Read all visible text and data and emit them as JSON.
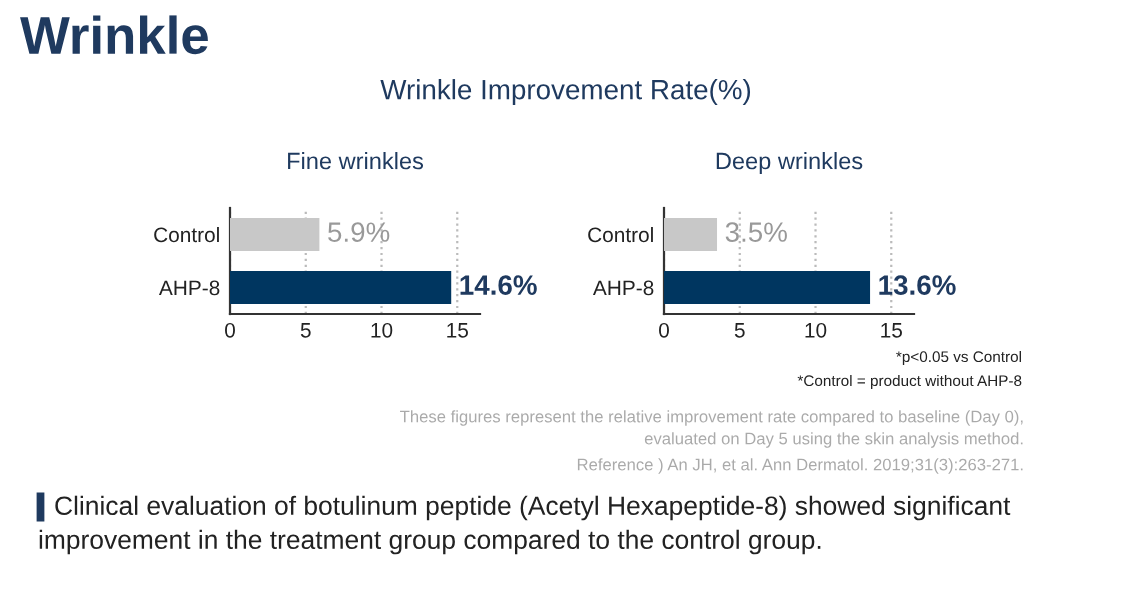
{
  "chart_data": [
    {
      "type": "bar",
      "orientation": "horizontal",
      "title": "Fine wrinkles",
      "annotations": [
        "Wrinkle",
        "Wrinkle Improvement Rate(%)"
      ],
      "categories": [
        "Control",
        "AHP-8"
      ],
      "values": [
        5.9,
        14.6
      ],
      "colors": [
        "#c8c8c8",
        "#003660"
      ],
      "value_labels": [
        "5.9%",
        "14.6%"
      ],
      "xlim": [
        0,
        16.5
      ],
      "xticks": [
        0,
        5,
        10,
        15
      ],
      "grid": "x"
    },
    {
      "type": "bar",
      "orientation": "horizontal",
      "title": "Deep wrinkles",
      "annotations": [
        "*p<0.05 vs Control",
        "*Control = product without AHP-8",
        "These figures represent the relative improvement rate compared to baseline (Day 0),",
        "evaluated on Day 5 using the skin analysis method.",
        "Reference ) An JH, et al. Ann Dermatol. 2019;31(3):263-271.",
        "Clinical evaluation of botulinum peptide (Acetyl Hexapeptide-8) showed significant",
        "improvement in the treatment group compared to the control group."
      ],
      "categories": [
        "Control",
        "AHP-8"
      ],
      "values": [
        3.5,
        13.6
      ],
      "colors": [
        "#c8c8c8",
        "#003660"
      ],
      "value_labels": [
        "3.5%",
        "13.6%"
      ],
      "xlim": [
        0,
        16.5
      ],
      "xticks": [
        0,
        5,
        10,
        15
      ],
      "grid": "x"
    }
  ]
}
